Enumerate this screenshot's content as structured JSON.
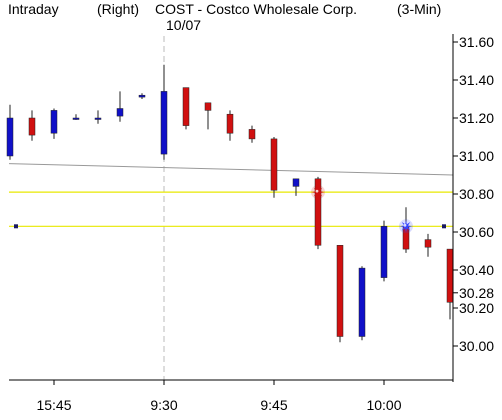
{
  "header": {
    "mode": "Intraday",
    "axis_side": "(Right)",
    "symbol_title": "COST - Costco Wholesale Corp.",
    "interval": "(3-Min)",
    "date_marker": "10/07"
  },
  "colors": {
    "up": "#1010c8",
    "down": "#d01010",
    "reference_line": "#999999",
    "level_line": "#e8e800",
    "marker": "#1a1a60"
  },
  "chart_data": {
    "type": "candlestick",
    "y_ticks": [
      31.6,
      31.4,
      31.2,
      31.0,
      30.8,
      30.6,
      30.4,
      30.28,
      30.2,
      30.0
    ],
    "y_tick_labels": [
      "31.60",
      "31.40",
      "31.20",
      "31.00",
      "30.80",
      "30.60",
      "30.40",
      "30.28",
      "30.20",
      "30.00"
    ],
    "x_ticks": [
      {
        "i": 2,
        "label": "15:45"
      },
      {
        "i": 7,
        "label": "9:30"
      },
      {
        "i": 12,
        "label": "9:45"
      },
      {
        "i": 17,
        "label": "10:00"
      }
    ],
    "session_break_index": 7,
    "candles": [
      {
        "o": 31.0,
        "h": 31.27,
        "l": 30.98,
        "c": 31.2
      },
      {
        "o": 31.2,
        "h": 31.24,
        "l": 31.08,
        "c": 31.11
      },
      {
        "o": 31.12,
        "h": 31.25,
        "l": 31.09,
        "c": 31.24
      },
      {
        "o": 31.2,
        "h": 31.22,
        "l": 31.19,
        "c": 31.2
      },
      {
        "o": 31.2,
        "h": 31.24,
        "l": 31.17,
        "c": 31.2
      },
      {
        "o": 31.21,
        "h": 31.34,
        "l": 31.18,
        "c": 31.25
      },
      {
        "o": 31.31,
        "h": 31.33,
        "l": 31.3,
        "c": 31.32
      },
      {
        "o": 31.01,
        "h": 31.48,
        "l": 30.98,
        "c": 31.34
      },
      {
        "o": 31.36,
        "h": 31.36,
        "l": 31.14,
        "c": 31.16
      },
      {
        "o": 31.28,
        "h": 31.28,
        "l": 31.14,
        "c": 31.24
      },
      {
        "o": 31.22,
        "h": 31.24,
        "l": 31.08,
        "c": 31.12
      },
      {
        "o": 31.14,
        "h": 31.16,
        "l": 31.07,
        "c": 31.09
      },
      {
        "o": 31.09,
        "h": 31.1,
        "l": 30.78,
        "c": 30.82
      },
      {
        "o": 30.84,
        "h": 30.88,
        "l": 30.79,
        "c": 30.88
      },
      {
        "o": 30.88,
        "h": 30.89,
        "l": 30.51,
        "c": 30.53
      },
      {
        "o": 30.53,
        "h": 30.53,
        "l": 30.02,
        "c": 30.05
      },
      {
        "o": 30.05,
        "h": 30.42,
        "l": 30.03,
        "c": 30.41
      },
      {
        "o": 30.36,
        "h": 30.66,
        "l": 30.34,
        "c": 30.63
      },
      {
        "o": 30.63,
        "h": 30.73,
        "l": 30.49,
        "c": 30.51
      },
      {
        "o": 30.56,
        "h": 30.59,
        "l": 30.47,
        "c": 30.52
      },
      {
        "o": 30.51,
        "h": 30.51,
        "l": 30.14,
        "c": 30.23
      }
    ],
    "reference_line": {
      "from": 30.96,
      "to": 30.9
    },
    "levels": [
      30.81,
      30.63
    ],
    "star_markers": [
      {
        "i": 14,
        "y": 30.81,
        "color": "#d01010"
      },
      {
        "i": 18,
        "y": 30.63,
        "color": "#3344ff"
      }
    ],
    "square_markers": [
      {
        "side": "left",
        "y": 30.63
      },
      {
        "side": "right",
        "y": 30.63
      }
    ]
  }
}
